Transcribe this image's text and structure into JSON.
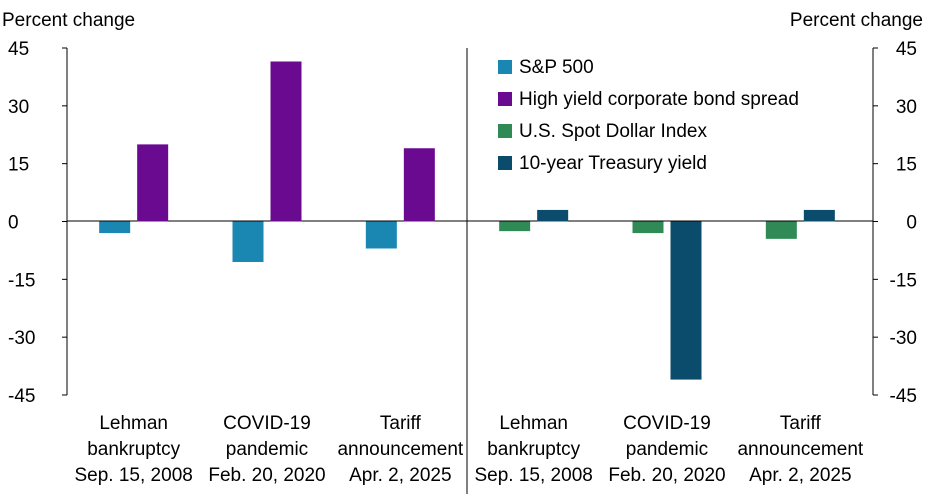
{
  "chart_data": {
    "type": "bar",
    "ylabel_left": "Percent change",
    "ylabel_right": "Percent change",
    "ylim": [
      -45,
      45
    ],
    "yticks": [
      45,
      30,
      15,
      0,
      -15,
      -30,
      -45
    ],
    "grid": false,
    "legend_position": "top-right",
    "panels": [
      {
        "name": "left",
        "categories": [
          [
            "Lehman",
            "bankruptcy",
            "Sep. 15, 2008"
          ],
          [
            "COVID-19",
            "pandemic",
            "Feb. 20, 2020"
          ],
          [
            "Tariff",
            "announcement",
            "Apr. 2, 2025"
          ]
        ],
        "series": [
          {
            "name": "S&P 500",
            "color": "#1a87b3",
            "values": [
              -3,
              -10.5,
              -7
            ]
          },
          {
            "name": "High yield corporate bond spread",
            "color": "#6a0a91",
            "values": [
              20,
              41.5,
              19
            ]
          }
        ]
      },
      {
        "name": "right",
        "categories": [
          [
            "Lehman",
            "bankruptcy",
            "Sep. 15, 2008"
          ],
          [
            "COVID-19",
            "pandemic",
            "Feb. 20, 2020"
          ],
          [
            "Tariff",
            "announcement",
            "Apr. 2, 2025"
          ]
        ],
        "series": [
          {
            "name": "U.S. Spot Dollar Index",
            "color": "#2f8a55",
            "values": [
              -2.5,
              -3,
              -4.5
            ]
          },
          {
            "name": "10-year Treasury yield",
            "color": "#0b4b6b",
            "values": [
              3,
              -41,
              3
            ]
          }
        ]
      }
    ],
    "legend": [
      {
        "label": "S&P 500",
        "color": "#1a87b3"
      },
      {
        "label": "High yield corporate bond spread",
        "color": "#6a0a91"
      },
      {
        "label": "U.S. Spot Dollar Index",
        "color": "#2f8a55"
      },
      {
        "label": "10-year Treasury yield",
        "color": "#0b4b6b"
      }
    ]
  }
}
